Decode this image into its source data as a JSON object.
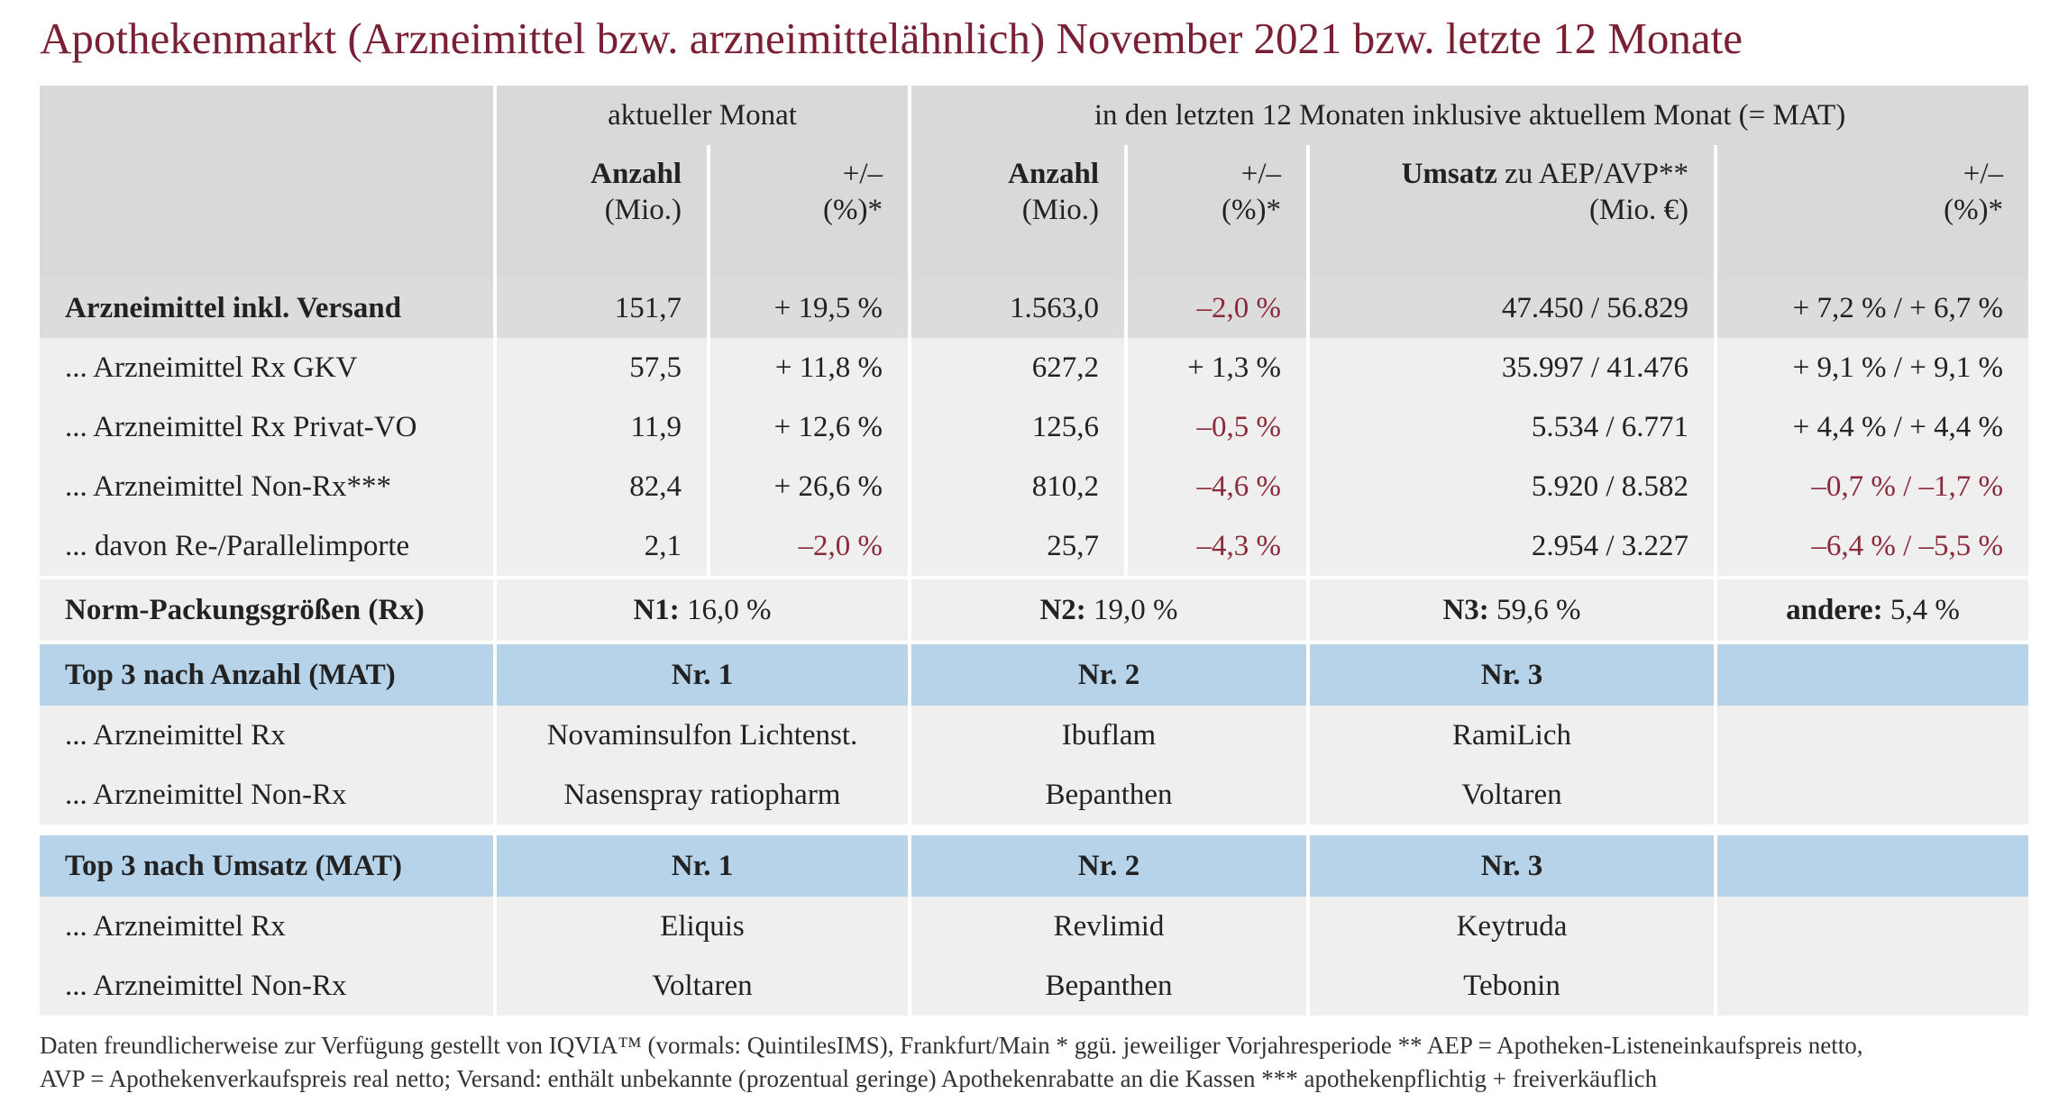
{
  "title": "Apothekenmarkt (Arzneimittel bzw. arzneimittelähnlich) November 2021 bzw. letzte 12 Monate",
  "header": {
    "groups": [
      "aktueller Monat",
      "in den letzten 12 Monaten inklusive aktuellem Monat (= MAT)"
    ],
    "columns": [
      {
        "bold": "Anzahl",
        "line2": "(Mio.)"
      },
      {
        "text": "+/–",
        "line2": "(%)*"
      },
      {
        "bold": "Anzahl",
        "line2": "(Mio.)"
      },
      {
        "text": "+/–",
        "line2": "(%)*"
      },
      {
        "bold": "Umsatz",
        "text": "zu AEP/AVP**",
        "line2": "(Mio. €)"
      },
      {
        "text": "+/–",
        "line2": "(%)*"
      }
    ]
  },
  "rows": [
    [
      "Arzneimittel inkl. Versand",
      "151,7",
      "+ 19,5 %",
      "1.563,0",
      "–2,0 %",
      "47.450 / 56.829",
      "+ 7,2 % / + 6,7 %"
    ],
    [
      "... Arzneimittel Rx GKV",
      "57,5",
      "+ 11,8 %",
      "627,2",
      "+ 1,3 %",
      "35.997 / 41.476",
      "+ 9,1 % / + 9,1 %"
    ],
    [
      "... Arzneimittel Rx Privat-VO",
      "11,9",
      "+ 12,6 %",
      "125,6",
      "–0,5 %",
      "5.534 / 6.771",
      "+ 4,4 % / + 4,4 %"
    ],
    [
      "... Arzneimittel Non-Rx***",
      "82,4",
      "+ 26,6 %",
      "810,2",
      "–4,6 %",
      "5.920 / 8.582",
      "–0,7 % / –1,7 %"
    ],
    [
      "... davon Re-/Parallelimporte",
      "2,1",
      "–2,0 %",
      "25,7",
      "–4,3 %",
      "2.954 / 3.227",
      "–6,4 % / –5,5 %"
    ]
  ],
  "norm": {
    "label": "Norm-Packungsgrößen (Rx)",
    "items": [
      {
        "bold": "N1:",
        "text": "16,0 %"
      },
      {
        "bold": "N2:",
        "text": "19,0 %"
      },
      {
        "bold": "N3:",
        "text": "59,6 %"
      },
      {
        "bold": "andere:",
        "text": "5,4 %"
      }
    ]
  },
  "top_count": {
    "header": [
      "Top 3 nach Anzahl (MAT)",
      "Nr. 1",
      "Nr. 2",
      "Nr. 3"
    ],
    "rows": [
      [
        "... Arzneimittel Rx",
        "Novaminsulfon Lichtenst.",
        "Ibuflam",
        "RamiLich"
      ],
      [
        "... Arzneimittel Non-Rx",
        "Nasenspray ratiopharm",
        "Bepanthen",
        "Voltaren"
      ]
    ]
  },
  "top_revenue": {
    "header": [
      "Top 3 nach Umsatz (MAT)",
      "Nr. 1",
      "Nr. 2",
      "Nr. 3"
    ],
    "rows": [
      [
        "... Arzneimittel Rx",
        "Eliquis",
        "Revlimid",
        "Keytruda"
      ],
      [
        "... Arzneimittel Non-Rx",
        "Voltaren",
        "Bepanthen",
        "Tebonin"
      ]
    ]
  },
  "footer": [
    "Daten freundlicherweise zur Verfügung gestellt von IQVIA™ (vormals: QuintilesIMS), Frankfurt/Main  * ggü. jeweiliger Vorjahresperiode  ** AEP = Apotheken-Listeneinkaufspreis netto,",
    "AVP = Apothekenverkaufspreis real netto; Versand: enthält unbekannte (prozentual geringe) Apothekenrabatte an die Kassen   *** apothekenpflichtig + freiverkäuflich"
  ]
}
